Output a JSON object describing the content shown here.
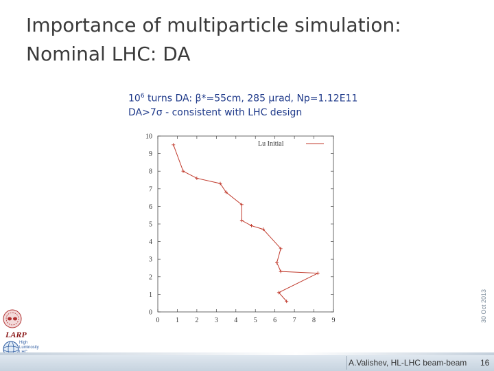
{
  "title_line1": "Importance of multiparticle simulation:",
  "title_line2": "Nominal LHC: DA",
  "subtitle_line1_pre": "10",
  "subtitle_line1_sup": "6",
  "subtitle_line1_post": " turns DA: β*=55cm, 285 μrad, Np=1.12E11",
  "subtitle_line2": "DA>7σ - consistent with LHC design",
  "date_vertical": "30 Oct 2013",
  "footer": {
    "author": "A.Valishev, HL-LHC beam-beam",
    "page": "16"
  },
  "logos": {
    "larp": "LARP",
    "hl_lhc": [
      "High",
      "Luminosity",
      "LHC"
    ]
  },
  "colors": {
    "series": "#c0392b",
    "title": "#3a3a3a",
    "subtitle": "#1f3a8a"
  },
  "chart_data": {
    "type": "line",
    "series": [
      {
        "name": "Lu Initial",
        "x": [
          6.6,
          6.2,
          8.2,
          6.3,
          6.1,
          6.3,
          5.4,
          4.8,
          4.3,
          4.3,
          3.5,
          3.2,
          2.0,
          1.3,
          0.8
        ],
        "y": [
          0.6,
          1.1,
          2.2,
          2.3,
          2.8,
          3.6,
          4.7,
          4.9,
          5.2,
          6.1,
          6.8,
          7.3,
          7.6,
          8.0,
          9.5
        ]
      }
    ],
    "xlim": [
      0,
      9
    ],
    "ylim": [
      0,
      10
    ],
    "xticks": [
      "0",
      "1",
      "2",
      "3",
      "4",
      "5",
      "6",
      "7",
      "8",
      "9"
    ],
    "yticks": [
      "0",
      "1",
      "2",
      "3",
      "4",
      "5",
      "6",
      "7",
      "8",
      "9",
      "10"
    ],
    "grid": false,
    "legend": "top-right"
  }
}
